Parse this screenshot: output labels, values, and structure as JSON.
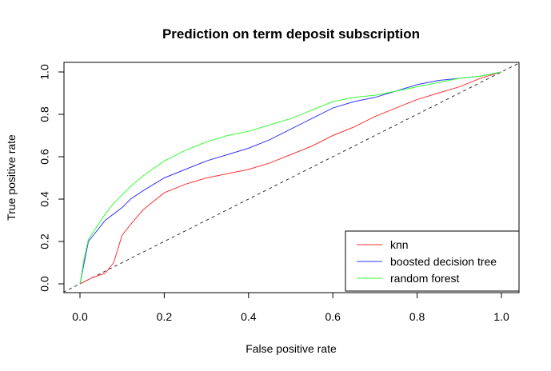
{
  "chart_data": {
    "type": "line",
    "title": "Prediction on term deposit subscription",
    "xlabel": "False positive rate",
    "ylabel": "True positive rate",
    "xlim": [
      0,
      1
    ],
    "ylim": [
      0,
      1
    ],
    "x_ticks": [
      "0.0",
      "0.2",
      "0.4",
      "0.6",
      "0.8",
      "1.0"
    ],
    "y_ticks": [
      "0.0",
      "0.2",
      "0.4",
      "0.6",
      "0.8",
      "1.0"
    ],
    "legend_position": "bottom-right",
    "grid": false,
    "reference_line": {
      "style": "dashed",
      "color": "#333333",
      "x": [
        0,
        1
      ],
      "y": [
        0,
        1
      ]
    },
    "series": [
      {
        "name": "knn",
        "color": "#ff3333",
        "x": [
          0,
          0.03,
          0.06,
          0.08,
          0.1,
          0.12,
          0.15,
          0.2,
          0.25,
          0.3,
          0.35,
          0.4,
          0.45,
          0.5,
          0.55,
          0.6,
          0.65,
          0.7,
          0.75,
          0.8,
          0.85,
          0.9,
          0.95,
          1.0
        ],
        "y": [
          0,
          0.03,
          0.05,
          0.1,
          0.23,
          0.28,
          0.35,
          0.43,
          0.47,
          0.5,
          0.52,
          0.54,
          0.57,
          0.61,
          0.65,
          0.7,
          0.74,
          0.79,
          0.83,
          0.87,
          0.9,
          0.93,
          0.97,
          1.0
        ]
      },
      {
        "name": "boosted decision tree",
        "color": "#3333ff",
        "x": [
          0,
          0.01,
          0.02,
          0.04,
          0.06,
          0.08,
          0.1,
          0.12,
          0.15,
          0.2,
          0.25,
          0.3,
          0.35,
          0.4,
          0.45,
          0.5,
          0.55,
          0.6,
          0.65,
          0.7,
          0.75,
          0.8,
          0.85,
          0.9,
          0.95,
          1.0
        ],
        "y": [
          0,
          0.1,
          0.2,
          0.25,
          0.3,
          0.33,
          0.36,
          0.4,
          0.44,
          0.5,
          0.54,
          0.58,
          0.61,
          0.64,
          0.68,
          0.73,
          0.78,
          0.83,
          0.86,
          0.88,
          0.91,
          0.94,
          0.96,
          0.97,
          0.98,
          1.0
        ]
      },
      {
        "name": "random forest",
        "color": "#33ff33",
        "x": [
          0,
          0.01,
          0.02,
          0.04,
          0.06,
          0.08,
          0.1,
          0.12,
          0.15,
          0.2,
          0.25,
          0.3,
          0.35,
          0.4,
          0.45,
          0.5,
          0.55,
          0.6,
          0.65,
          0.7,
          0.75,
          0.8,
          0.85,
          0.9,
          0.95,
          1.0
        ],
        "y": [
          0,
          0.12,
          0.21,
          0.27,
          0.33,
          0.38,
          0.42,
          0.46,
          0.51,
          0.58,
          0.63,
          0.67,
          0.7,
          0.72,
          0.75,
          0.78,
          0.82,
          0.86,
          0.88,
          0.89,
          0.91,
          0.93,
          0.95,
          0.97,
          0.98,
          1.0
        ]
      }
    ]
  }
}
